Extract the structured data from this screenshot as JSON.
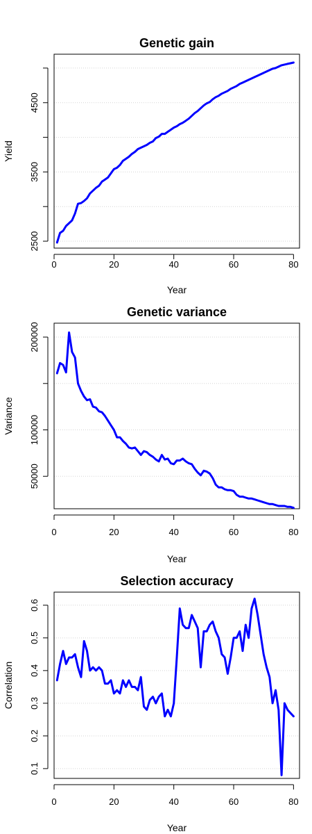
{
  "chart_data": [
    {
      "type": "line",
      "title": "Genetic gain",
      "xlabel": "Year",
      "ylabel": "Yield",
      "xlim": [
        0,
        82
      ],
      "ylim": [
        2400,
        5200
      ],
      "x_ticks": [
        0,
        20,
        40,
        60,
        80
      ],
      "y_ticks": [
        2500,
        3500,
        4500
      ],
      "y_grid": [
        2500,
        3000,
        3500,
        4000,
        4500,
        5000
      ],
      "grid": "horizontal dotted",
      "series": [
        {
          "color": "#0000ff",
          "x": [
            1,
            2,
            3,
            4,
            5,
            6,
            7,
            8,
            9,
            10,
            11,
            12,
            13,
            14,
            15,
            16,
            17,
            18,
            19,
            20,
            21,
            22,
            23,
            24,
            25,
            26,
            27,
            28,
            29,
            30,
            31,
            32,
            33,
            34,
            35,
            36,
            37,
            38,
            39,
            40,
            41,
            42,
            43,
            44,
            45,
            46,
            47,
            48,
            49,
            50,
            51,
            52,
            53,
            54,
            55,
            56,
            57,
            58,
            59,
            60,
            61,
            62,
            63,
            64,
            65,
            66,
            67,
            68,
            69,
            70,
            71,
            72,
            73,
            74,
            75,
            76,
            77,
            78,
            79,
            80
          ],
          "values": [
            2480,
            2620,
            2650,
            2720,
            2760,
            2800,
            2900,
            3040,
            3050,
            3080,
            3120,
            3190,
            3230,
            3270,
            3300,
            3360,
            3390,
            3420,
            3480,
            3540,
            3560,
            3600,
            3660,
            3690,
            3720,
            3760,
            3790,
            3830,
            3850,
            3870,
            3890,
            3920,
            3940,
            3990,
            4010,
            4050,
            4050,
            4080,
            4110,
            4140,
            4160,
            4190,
            4210,
            4240,
            4270,
            4310,
            4350,
            4380,
            4420,
            4460,
            4490,
            4510,
            4550,
            4580,
            4600,
            4630,
            4650,
            4670,
            4700,
            4720,
            4740,
            4770,
            4790,
            4810,
            4830,
            4850,
            4870,
            4890,
            4910,
            4930,
            4950,
            4970,
            4990,
            5000,
            5020,
            5040,
            5050,
            5060,
            5070,
            5080
          ]
        }
      ]
    },
    {
      "type": "line",
      "title": "Genetic variance",
      "xlabel": "Year",
      "ylabel": "Variance",
      "xlim": [
        0,
        82
      ],
      "ylim": [
        15000,
        215000
      ],
      "x_ticks": [
        0,
        20,
        40,
        60,
        80
      ],
      "y_ticks": [
        50000,
        100000,
        200000
      ],
      "y_grid": [
        50000,
        100000,
        150000,
        200000
      ],
      "grid": "horizontal dotted",
      "series": [
        {
          "color": "#0000ff",
          "x": [
            1,
            2,
            3,
            4,
            5,
            6,
            7,
            8,
            9,
            10,
            11,
            12,
            13,
            14,
            15,
            16,
            17,
            18,
            19,
            20,
            21,
            22,
            23,
            24,
            25,
            26,
            27,
            28,
            29,
            30,
            31,
            32,
            33,
            34,
            35,
            36,
            37,
            38,
            39,
            40,
            41,
            42,
            43,
            44,
            45,
            46,
            47,
            48,
            49,
            50,
            51,
            52,
            53,
            54,
            55,
            56,
            57,
            58,
            59,
            60,
            61,
            62,
            63,
            64,
            65,
            66,
            67,
            68,
            69,
            70,
            71,
            72,
            73,
            74,
            75,
            76,
            77,
            78,
            79,
            80
          ],
          "values": [
            161000,
            172000,
            170000,
            162000,
            205000,
            184000,
            178000,
            150000,
            142000,
            136000,
            132000,
            133000,
            125000,
            124000,
            120000,
            119000,
            115000,
            110000,
            105000,
            100000,
            92000,
            92000,
            88000,
            85000,
            81000,
            80000,
            81000,
            77000,
            73000,
            77000,
            76000,
            73000,
            71000,
            68000,
            66000,
            73000,
            68000,
            69000,
            64000,
            63000,
            67000,
            67000,
            69000,
            66000,
            64000,
            63000,
            58000,
            54000,
            51000,
            56000,
            55000,
            53000,
            48000,
            41000,
            38000,
            38000,
            36000,
            35000,
            35000,
            34000,
            30000,
            28000,
            28000,
            27000,
            26000,
            26000,
            25000,
            24000,
            23000,
            22000,
            21000,
            20000,
            20000,
            19000,
            18000,
            18000,
            18000,
            17000,
            17000,
            16000
          ]
        }
      ]
    },
    {
      "type": "line",
      "title": "Selection accuracy",
      "xlabel": "Year",
      "ylabel": "Correlation",
      "xlim": [
        0,
        82
      ],
      "ylim": [
        0.07,
        0.64
      ],
      "x_ticks": [
        0,
        20,
        40,
        60,
        80
      ],
      "y_ticks": [
        0.1,
        0.2,
        0.3,
        0.4,
        0.5,
        0.6
      ],
      "y_grid": [
        0.1,
        0.2,
        0.3,
        0.4,
        0.5,
        0.6
      ],
      "grid": "horizontal dotted",
      "series": [
        {
          "color": "#0000ff",
          "x": [
            1,
            2,
            3,
            4,
            5,
            6,
            7,
            8,
            9,
            10,
            11,
            12,
            13,
            14,
            15,
            16,
            17,
            18,
            19,
            20,
            21,
            22,
            23,
            24,
            25,
            26,
            27,
            28,
            29,
            30,
            31,
            32,
            33,
            34,
            35,
            36,
            37,
            38,
            39,
            40,
            41,
            42,
            43,
            44,
            45,
            46,
            47,
            48,
            49,
            50,
            51,
            52,
            53,
            54,
            55,
            56,
            57,
            58,
            59,
            60,
            61,
            62,
            63,
            64,
            65,
            66,
            67,
            68,
            69,
            70,
            71,
            72,
            73,
            74,
            75,
            76,
            77,
            78,
            79,
            80
          ],
          "values": [
            0.37,
            0.42,
            0.46,
            0.42,
            0.44,
            0.44,
            0.45,
            0.41,
            0.38,
            0.49,
            0.46,
            0.4,
            0.41,
            0.4,
            0.41,
            0.4,
            0.36,
            0.36,
            0.37,
            0.33,
            0.34,
            0.33,
            0.37,
            0.35,
            0.37,
            0.35,
            0.35,
            0.34,
            0.38,
            0.29,
            0.28,
            0.31,
            0.32,
            0.3,
            0.32,
            0.33,
            0.26,
            0.28,
            0.26,
            0.3,
            0.44,
            0.59,
            0.54,
            0.53,
            0.53,
            0.57,
            0.55,
            0.53,
            0.41,
            0.52,
            0.52,
            0.54,
            0.55,
            0.52,
            0.5,
            0.45,
            0.44,
            0.39,
            0.44,
            0.5,
            0.5,
            0.52,
            0.46,
            0.54,
            0.5,
            0.59,
            0.62,
            0.57,
            0.51,
            0.45,
            0.41,
            0.38,
            0.3,
            0.34,
            0.28,
            0.08,
            0.3,
            0.28,
            0.27,
            0.26
          ]
        }
      ]
    }
  ]
}
